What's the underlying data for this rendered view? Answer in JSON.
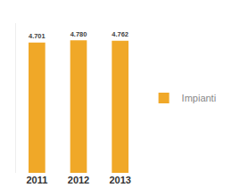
{
  "chart_data": {
    "type": "bar",
    "categories": [
      "2011",
      "2012",
      "2013"
    ],
    "series": [
      {
        "name": "Impianti",
        "color": "#f0a828",
        "values": [
          4701,
          4780,
          4762
        ],
        "value_labels": [
          "4.701",
          "4.780",
          "4.762"
        ]
      }
    ],
    "ylim": [
      0,
      5400
    ],
    "data_labels": true,
    "tick_labels": "x",
    "legend": "right"
  }
}
